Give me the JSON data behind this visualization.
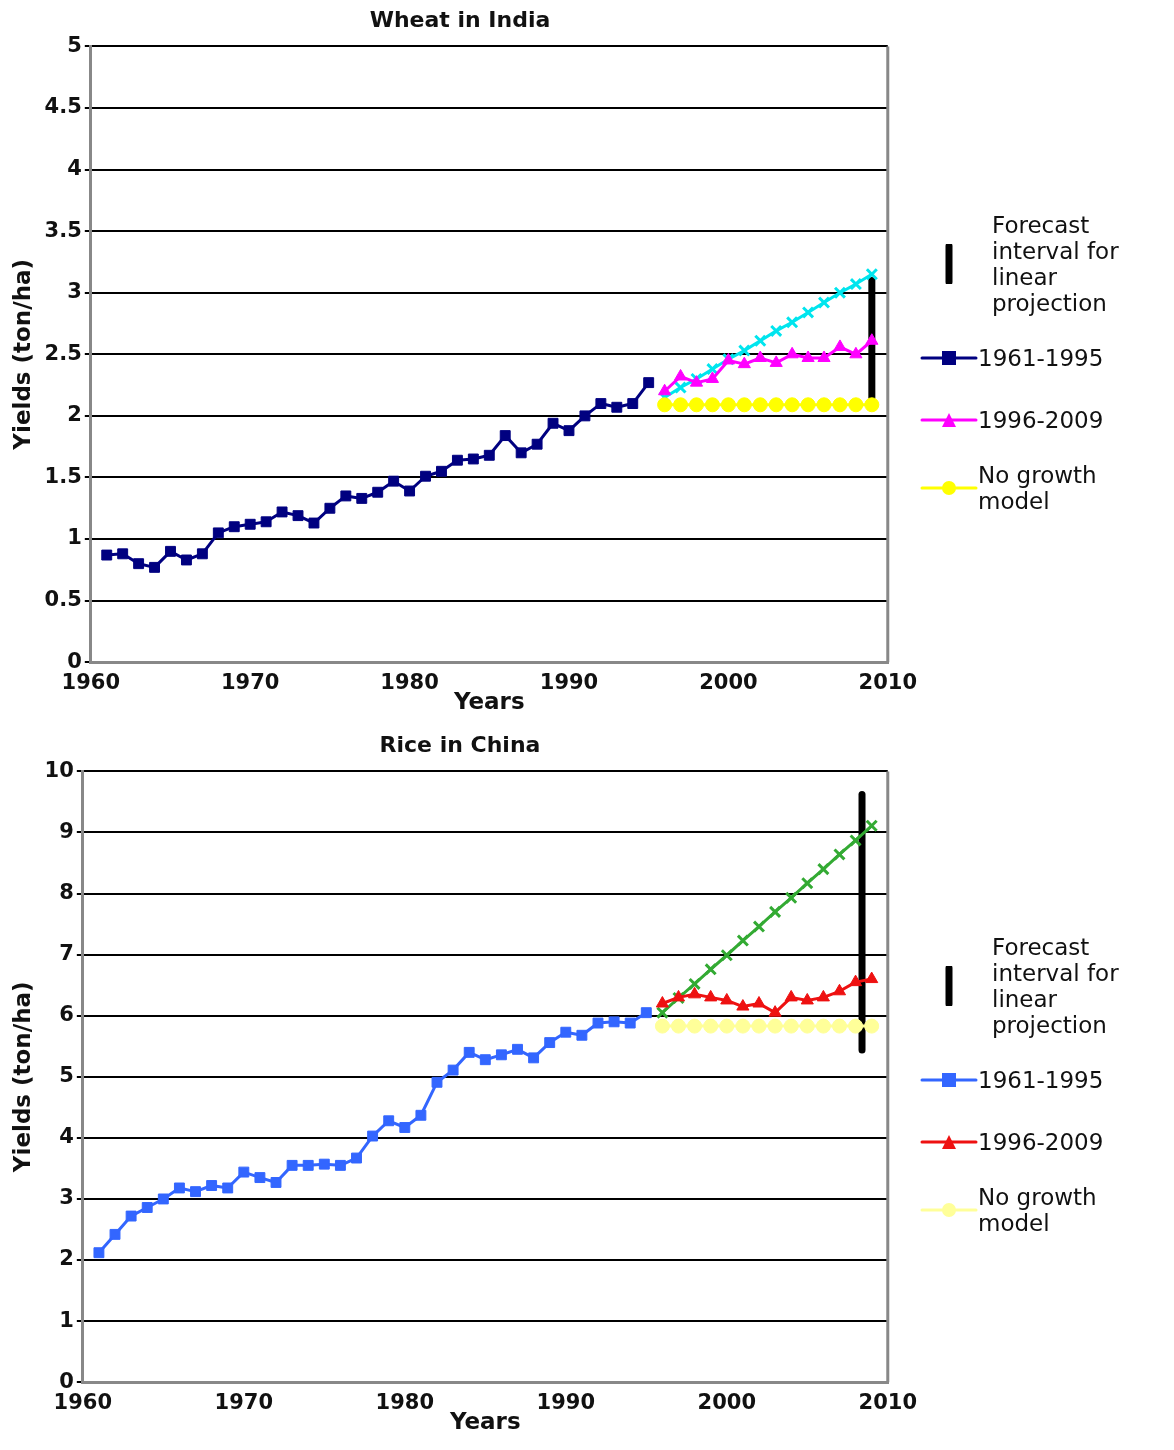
{
  "chart_data": [
    {
      "type": "line",
      "title": "Wheat in India",
      "xlabel": "Years",
      "ylabel": "Yields (ton/ha)",
      "xlim": [
        1960,
        2010
      ],
      "xticks": [
        1960,
        1970,
        1980,
        1990,
        2000,
        2010
      ],
      "ylim": [
        0,
        5
      ],
      "yticks": [
        0,
        0.5,
        1,
        1.5,
        2,
        2.5,
        3,
        3.5,
        4,
        4.5,
        5
      ],
      "grid": "y",
      "legend": "right",
      "line_style": "solid",
      "series": [
        {
          "name": "Forecast interval for linear projection",
          "color": "#000000",
          "marker": "none",
          "x": [
            2009,
            2009
          ],
          "values": [
            2.15,
            3.1
          ]
        },
        {
          "name": "1961-1995",
          "color": "#000080",
          "marker": "square",
          "x": [
            1961,
            1962,
            1963,
            1964,
            1965,
            1966,
            1967,
            1968,
            1969,
            1970,
            1971,
            1972,
            1973,
            1974,
            1975,
            1976,
            1977,
            1978,
            1979,
            1980,
            1981,
            1982,
            1983,
            1984,
            1985,
            1986,
            1987,
            1988,
            1989,
            1990,
            1991,
            1992,
            1993,
            1994,
            1995
          ],
          "values": [
            0.87,
            0.88,
            0.8,
            0.77,
            0.9,
            0.83,
            0.88,
            1.05,
            1.1,
            1.12,
            1.14,
            1.22,
            1.19,
            1.13,
            1.25,
            1.35,
            1.33,
            1.38,
            1.47,
            1.39,
            1.51,
            1.55,
            1.64,
            1.65,
            1.68,
            1.84,
            1.7,
            1.77,
            1.94,
            1.88,
            2.0,
            2.1,
            2.07,
            2.1,
            2.27
          ]
        },
        {
          "name": "1996-2009",
          "color": "#ff00ff",
          "marker": "triangle",
          "x": [
            1996,
            1997,
            1998,
            1999,
            2000,
            2001,
            2002,
            2003,
            2004,
            2005,
            2006,
            2007,
            2008,
            2009
          ],
          "values": [
            2.2,
            2.32,
            2.27,
            2.3,
            2.45,
            2.42,
            2.47,
            2.43,
            2.5,
            2.47,
            2.47,
            2.56,
            2.5,
            2.61
          ]
        },
        {
          "name": "No growth model",
          "color": "#ffff00",
          "marker": "circle",
          "x": [
            1996,
            1997,
            1998,
            1999,
            2000,
            2001,
            2002,
            2003,
            2004,
            2005,
            2006,
            2007,
            2008,
            2009
          ],
          "values": [
            2.09,
            2.09,
            2.09,
            2.09,
            2.09,
            2.09,
            2.09,
            2.09,
            2.09,
            2.09,
            2.09,
            2.09,
            2.09,
            2.09
          ]
        },
        {
          "color": "#00e5ee",
          "marker": "cross",
          "x": [
            1996,
            1997,
            1998,
            1999,
            2000,
            2001,
            2002,
            2003,
            2004,
            2005,
            2006,
            2007,
            2008,
            2009
          ],
          "values": [
            2.15,
            2.23,
            2.3,
            2.38,
            2.46,
            2.53,
            2.61,
            2.69,
            2.76,
            2.84,
            2.92,
            3.0,
            3.07,
            3.15
          ]
        }
      ]
    },
    {
      "type": "line",
      "title": "Rice in China",
      "xlabel": "Years",
      "ylabel": "Yields (ton/ha)",
      "xlim": [
        1960,
        2010
      ],
      "xticks": [
        1960,
        1970,
        1980,
        1990,
        2000,
        2010
      ],
      "ylim": [
        0,
        10
      ],
      "yticks": [
        0,
        1,
        2,
        3,
        4,
        5,
        6,
        7,
        8,
        9,
        10
      ],
      "grid": "y",
      "legend": "right",
      "line_style": "solid",
      "series": [
        {
          "name": "Forecast interval for linear projection",
          "color": "#000000",
          "marker": "none",
          "x": [
            2008.4,
            2008.4
          ],
          "values": [
            5.44,
            9.62
          ]
        },
        {
          "name": "1961-1995",
          "color": "#3366ff",
          "marker": "square",
          "x": [
            1961,
            1962,
            1963,
            1964,
            1965,
            1966,
            1967,
            1968,
            1969,
            1970,
            1971,
            1972,
            1973,
            1974,
            1975,
            1976,
            1977,
            1978,
            1979,
            1980,
            1981,
            1982,
            1983,
            1984,
            1985,
            1986,
            1987,
            1988,
            1989,
            1990,
            1991,
            1992,
            1993,
            1994,
            1995
          ],
          "values": [
            2.12,
            2.42,
            2.72,
            2.86,
            3.0,
            3.18,
            3.12,
            3.22,
            3.18,
            3.44,
            3.35,
            3.27,
            3.55,
            3.55,
            3.57,
            3.55,
            3.67,
            4.03,
            4.28,
            4.17,
            4.37,
            4.91,
            5.11,
            5.4,
            5.28,
            5.36,
            5.45,
            5.31,
            5.56,
            5.73,
            5.68,
            5.88,
            5.9,
            5.88,
            6.05
          ]
        },
        {
          "name": "1996-2009",
          "color": "#ee1111",
          "marker": "triangle",
          "x": [
            1996,
            1997,
            1998,
            1999,
            2000,
            2001,
            2002,
            2003,
            2004,
            2005,
            2006,
            2007,
            2008,
            2009
          ],
          "values": [
            6.2,
            6.3,
            6.35,
            6.3,
            6.25,
            6.15,
            6.2,
            6.05,
            6.3,
            6.25,
            6.3,
            6.4,
            6.55,
            6.6
          ]
        },
        {
          "name": "No growth model",
          "color": "#ffff99",
          "marker": "circle",
          "x": [
            1996,
            1997,
            1998,
            1999,
            2000,
            2001,
            2002,
            2003,
            2004,
            2005,
            2006,
            2007,
            2008,
            2009
          ],
          "values": [
            5.83,
            5.83,
            5.83,
            5.83,
            5.83,
            5.83,
            5.83,
            5.83,
            5.83,
            5.83,
            5.83,
            5.83,
            5.83,
            5.83
          ]
        },
        {
          "color": "#33aa33",
          "marker": "cross",
          "x": [
            1996,
            1997,
            1998,
            1999,
            2000,
            2001,
            2002,
            2003,
            2004,
            2005,
            2006,
            2007,
            2008,
            2009
          ],
          "values": [
            6.05,
            6.29,
            6.52,
            6.76,
            6.99,
            7.23,
            7.46,
            7.7,
            7.93,
            8.17,
            8.4,
            8.64,
            8.87,
            9.11
          ]
        }
      ]
    }
  ]
}
